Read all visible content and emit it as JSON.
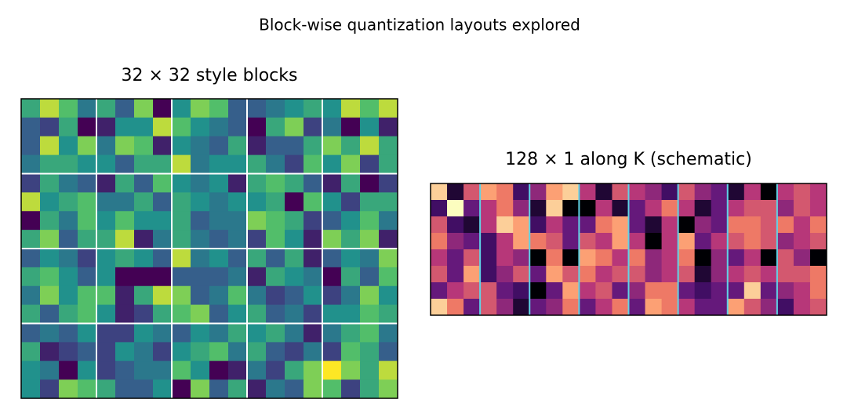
{
  "figure_title": "Block-wise quantization layouts explored",
  "chart_data": [
    {
      "type": "heatmap",
      "title": "32 × 32 style blocks",
      "colormap": "viridis",
      "clim": [
        0,
        1
      ],
      "block_size": [
        4,
        4
      ],
      "block_line_color": "#ffffff",
      "values": [
        [
          0.6,
          0.9,
          0.7,
          0.4,
          0.6,
          0.3,
          0.8,
          0.0,
          0.5,
          0.8,
          0.7,
          0.3,
          0.3,
          0.4,
          0.5,
          0.6,
          0.5,
          0.9,
          0.7,
          0.9
        ],
        [
          0.3,
          0.2,
          0.6,
          0.0,
          0.1,
          0.5,
          0.5,
          0.9,
          0.7,
          0.5,
          0.4,
          0.3,
          0.0,
          0.6,
          0.8,
          0.2,
          0.4,
          0.0,
          0.5,
          0.1
        ],
        [
          0.3,
          0.9,
          0.5,
          0.8,
          0.4,
          0.8,
          0.7,
          0.1,
          0.5,
          0.4,
          0.3,
          0.6,
          0.1,
          0.3,
          0.3,
          0.6,
          0.8,
          0.6,
          0.9,
          0.6
        ],
        [
          0.4,
          0.6,
          0.6,
          0.5,
          0.5,
          0.3,
          0.6,
          0.6,
          0.9,
          0.4,
          0.5,
          0.5,
          0.6,
          0.4,
          0.2,
          0.7,
          0.5,
          0.8,
          0.2,
          0.6
        ],
        [
          0.2,
          0.6,
          0.4,
          0.3,
          0.1,
          0.6,
          0.3,
          0.7,
          0.5,
          0.4,
          0.5,
          0.1,
          0.6,
          0.7,
          0.6,
          0.3,
          0.1,
          0.6,
          0.0,
          0.2
        ],
        [
          0.9,
          0.5,
          0.6,
          0.7,
          0.4,
          0.4,
          0.6,
          0.3,
          0.6,
          0.5,
          0.4,
          0.5,
          0.5,
          0.6,
          0.0,
          0.7,
          0.5,
          0.2,
          0.6,
          0.6
        ],
        [
          0.0,
          0.6,
          0.4,
          0.7,
          0.5,
          0.7,
          0.5,
          0.5,
          0.6,
          0.3,
          0.4,
          0.4,
          0.8,
          0.7,
          0.6,
          0.2,
          0.3,
          0.5,
          0.7,
          0.4
        ],
        [
          0.6,
          0.8,
          0.3,
          0.6,
          0.6,
          0.9,
          0.1,
          0.4,
          0.6,
          0.4,
          0.3,
          0.4,
          0.2,
          0.7,
          0.5,
          0.1,
          0.8,
          0.6,
          0.8,
          0.1
        ],
        [
          0.3,
          0.5,
          0.4,
          0.2,
          0.5,
          0.6,
          0.5,
          0.3,
          0.9,
          0.4,
          0.5,
          0.3,
          0.6,
          0.3,
          0.6,
          0.1,
          0.3,
          0.5,
          0.4,
          0.8
        ],
        [
          0.6,
          0.7,
          0.5,
          0.3,
          0.5,
          0.0,
          0.0,
          0.0,
          0.3,
          0.3,
          0.3,
          0.4,
          0.1,
          0.6,
          0.5,
          0.4,
          0.0,
          0.6,
          0.3,
          0.7
        ],
        [
          0.4,
          0.8,
          0.5,
          0.7,
          0.7,
          0.1,
          0.6,
          0.9,
          0.8,
          0.3,
          0.4,
          0.7,
          0.4,
          0.2,
          0.3,
          0.5,
          0.2,
          0.4,
          0.8,
          0.5
        ],
        [
          0.6,
          0.3,
          0.6,
          0.7,
          0.5,
          0.1,
          0.2,
          0.6,
          0.7,
          0.8,
          0.3,
          0.5,
          0.6,
          0.3,
          0.4,
          0.2,
          0.5,
          0.5,
          0.7,
          0.6
        ],
        [
          0.3,
          0.4,
          0.3,
          0.5,
          0.2,
          0.2,
          0.5,
          0.4,
          0.3,
          0.5,
          0.4,
          0.6,
          0.5,
          0.6,
          0.4,
          0.1,
          0.4,
          0.6,
          0.7,
          0.4
        ],
        [
          0.6,
          0.1,
          0.2,
          0.3,
          0.2,
          0.5,
          0.4,
          0.2,
          0.5,
          0.6,
          0.7,
          0.4,
          0.6,
          0.3,
          0.2,
          0.4,
          0.2,
          0.7,
          0.6,
          0.3
        ],
        [
          0.5,
          0.4,
          0.0,
          0.5,
          0.2,
          0.3,
          0.4,
          0.4,
          0.7,
          0.5,
          0.0,
          0.1,
          0.4,
          0.2,
          0.6,
          0.8,
          1.0,
          0.8,
          0.6,
          0.9
        ],
        [
          0.5,
          0.2,
          0.8,
          0.7,
          0.6,
          0.3,
          0.3,
          0.5,
          0.0,
          0.8,
          0.3,
          0.6,
          0.1,
          0.4,
          0.3,
          0.8,
          0.7,
          0.2,
          0.6,
          0.8
        ]
      ]
    },
    {
      "type": "heatmap",
      "title": "128 × 1 along K (schematic)",
      "colormap": "magma",
      "clim": [
        0,
        1
      ],
      "block_size": [
        8,
        3
      ],
      "block_line_color": "#5fd3e6",
      "values": [
        [
          0.9,
          0.1,
          0.6,
          0.8,
          0.7,
          0.2,
          0.4,
          0.8,
          0.9,
          0.5,
          0.1,
          0.6,
          0.5,
          0.4,
          0.2,
          0.6,
          0.4,
          0.3,
          0.1,
          0.5,
          0.0,
          0.5,
          0.6,
          0.5
        ],
        [
          0.2,
          1.0,
          0.3,
          0.5,
          0.7,
          0.4,
          0.1,
          0.9,
          0.0,
          0.0,
          0.5,
          0.1,
          0.3,
          0.5,
          0.7,
          0.5,
          0.1,
          0.3,
          0.5,
          0.6,
          0.6,
          0.4,
          0.6,
          0.5
        ],
        [
          0.6,
          0.2,
          0.1,
          0.5,
          0.9,
          0.8,
          0.2,
          0.5,
          0.3,
          0.3,
          0.7,
          0.8,
          0.3,
          0.1,
          0.5,
          0.0,
          0.4,
          0.3,
          0.7,
          0.7,
          0.6,
          0.7,
          0.5,
          0.7
        ],
        [
          0.7,
          0.4,
          0.3,
          0.2,
          0.5,
          0.8,
          0.7,
          0.6,
          0.3,
          0.6,
          0.5,
          0.8,
          0.5,
          0.0,
          0.5,
          0.8,
          0.3,
          0.5,
          0.6,
          0.7,
          0.6,
          0.4,
          0.5,
          0.6
        ],
        [
          0.5,
          0.3,
          0.6,
          0.2,
          0.5,
          0.4,
          0.0,
          0.7,
          0.0,
          0.8,
          0.7,
          0.5,
          0.7,
          0.4,
          0.5,
          0.7,
          0.0,
          0.4,
          0.3,
          0.5,
          0.0,
          0.6,
          0.4,
          0.0
        ],
        [
          0.6,
          0.3,
          0.8,
          0.2,
          0.4,
          0.6,
          0.3,
          0.8,
          0.6,
          0.7,
          0.5,
          0.6,
          0.6,
          0.4,
          0.5,
          0.6,
          0.1,
          0.4,
          0.5,
          0.6,
          0.5,
          0.6,
          0.6,
          0.7
        ],
        [
          0.3,
          0.5,
          0.6,
          0.6,
          0.3,
          0.2,
          0.0,
          0.3,
          0.8,
          0.5,
          0.6,
          0.3,
          0.4,
          0.7,
          0.7,
          0.3,
          0.2,
          0.3,
          0.3,
          0.9,
          0.3,
          0.4,
          0.5,
          0.7
        ],
        [
          0.9,
          0.7,
          0.3,
          0.6,
          0.4,
          0.1,
          0.3,
          0.4,
          0.7,
          0.3,
          0.5,
          0.7,
          0.3,
          0.8,
          0.7,
          0.5,
          0.3,
          0.3,
          0.8,
          0.6,
          0.4,
          0.2,
          0.5,
          0.6
        ]
      ]
    }
  ]
}
